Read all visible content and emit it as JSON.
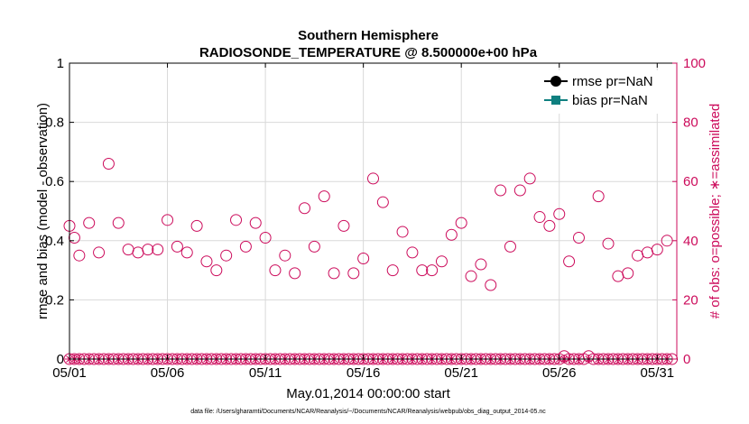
{
  "chart_data": {
    "type": "scatter",
    "title_line1": "Southern Hemisphere",
    "title_line2": "RADIOSONDE_TEMPERATURE @ 8.500000e+00 hPa",
    "xlabel": "May.01,2014 00:00:00 start",
    "ylabel_left": "rmse and bias (model - observation)",
    "ylabel_right": "# of obs: o=possible; ∗=assimilated",
    "footnote": "data file: /Users/gharamti/Documents/NCAR/Reanalysis/~/Documents/NCAR/Reanalysis/webpub/obs_diag_output_2014-05.nc",
    "xlim": [
      1,
      32
    ],
    "x_ticks": [
      1,
      6,
      11,
      16,
      21,
      26,
      31
    ],
    "x_tick_labels": [
      "05/01",
      "05/06",
      "05/11",
      "05/16",
      "05/21",
      "05/26",
      "05/31"
    ],
    "ylim_left": [
      0,
      1
    ],
    "left_ticks": [
      "0",
      "0.2",
      "0.4",
      "0.6",
      "0.8",
      "1"
    ],
    "ylim_right": [
      0,
      100
    ],
    "right_ticks": [
      "0",
      "20",
      "40",
      "60",
      "80",
      "100"
    ],
    "grid": true,
    "legend_position": "top-right",
    "legend": [
      {
        "label": "rmse pr=NaN",
        "color": "#000000",
        "marker": "circle"
      },
      {
        "label": "bias pr=NaN",
        "color": "#0f8080",
        "marker": "square"
      }
    ],
    "colors": {
      "left_axis": "#000000",
      "right_axis": "#cc0b5b",
      "obs": "#cc0b5b",
      "grid": "#d9d9d9"
    },
    "series": [
      {
        "name": "# of obs: possible",
        "axis": "right",
        "marker": "circle",
        "x": [
          1.0,
          1.25,
          1.5,
          2.0,
          2.5,
          3.0,
          3.5,
          4.0,
          4.5,
          5.0,
          5.5,
          6.0,
          6.5,
          7.0,
          7.5,
          8.0,
          8.5,
          9.0,
          9.5,
          10.0,
          10.5,
          11.0,
          11.5,
          12.0,
          12.5,
          13.0,
          13.5,
          14.0,
          14.5,
          15.0,
          15.5,
          16.0,
          16.5,
          17.0,
          17.5,
          18.0,
          18.5,
          19.0,
          19.5,
          20.0,
          20.5,
          21.0,
          21.5,
          22.0,
          22.5,
          23.0,
          23.5,
          24.0,
          24.5,
          25.0,
          25.5,
          26.0,
          26.25,
          26.5,
          27.0,
          27.5,
          28.0,
          28.5,
          29.0,
          29.5,
          30.0,
          30.5,
          31.0,
          31.5
        ],
        "values": [
          45,
          41,
          35,
          46,
          36,
          66,
          46,
          37,
          36,
          37,
          37,
          47,
          38,
          36,
          45,
          33,
          30,
          35,
          47,
          38,
          46,
          41,
          30,
          35,
          29,
          51,
          38,
          55,
          29,
          45,
          29,
          34,
          61,
          53,
          30,
          43,
          36,
          30,
          30,
          33,
          42,
          46,
          28,
          32,
          25,
          57,
          38,
          57,
          61,
          48,
          45,
          49,
          1,
          33,
          41,
          1,
          55,
          39,
          28,
          29,
          35,
          36,
          37,
          40
        ]
      },
      {
        "name": "# of obs: assimilated",
        "axis": "right",
        "marker": "star",
        "x": [
          1.0,
          1.25,
          1.5,
          2.0,
          2.5,
          3.0,
          3.5,
          4.0,
          4.5,
          5.0,
          5.5,
          6.0,
          6.5,
          7.0,
          7.5,
          8.0,
          8.5,
          9.0,
          9.5,
          10.0,
          10.5,
          11.0,
          11.5,
          12.0,
          12.5,
          13.0,
          13.5,
          14.0,
          14.5,
          15.0,
          15.5,
          16.0,
          16.5,
          17.0,
          17.5,
          18.0,
          18.5,
          19.0,
          19.5,
          20.0,
          20.5,
          21.0,
          21.5,
          22.0,
          22.5,
          23.0,
          23.5,
          24.0,
          24.5,
          25.0,
          25.5,
          26.0,
          26.25,
          26.5,
          27.0,
          27.5,
          28.0,
          28.5,
          29.0,
          29.5,
          30.0,
          30.5,
          31.0,
          31.5
        ],
        "values": [
          0,
          0,
          0,
          0,
          0,
          0,
          0,
          0,
          0,
          0,
          0,
          0,
          0,
          0,
          0,
          0,
          0,
          0,
          0,
          0,
          0,
          0,
          0,
          0,
          0,
          0,
          0,
          0,
          0,
          0,
          0,
          0,
          0,
          0,
          0,
          0,
          0,
          0,
          0,
          0,
          0,
          0,
          0,
          0,
          0,
          0,
          0,
          0,
          0,
          0,
          0,
          0,
          0,
          0,
          0,
          0,
          0,
          0,
          0,
          0,
          0,
          0,
          0,
          0
        ]
      },
      {
        "name": "# of obs: possible (zero counts)",
        "axis": "right",
        "marker": "circle",
        "x": [
          1.0,
          1.25,
          1.5,
          1.75,
          2.0,
          2.25,
          2.5,
          2.75,
          3.0,
          3.25,
          3.5,
          3.75,
          4.0,
          4.25,
          4.5,
          4.75,
          5.0,
          5.25,
          5.5,
          5.75,
          6.0,
          6.25,
          6.5,
          6.75,
          7.0,
          7.25,
          7.5,
          7.75,
          8.0,
          8.25,
          8.5,
          8.75,
          9.0,
          9.25,
          9.5,
          9.75,
          10.0,
          10.25,
          10.5,
          10.75,
          11.0,
          11.25,
          11.5,
          11.75,
          12.0,
          12.25,
          12.5,
          12.75,
          13.0,
          13.25,
          13.5,
          13.75,
          14.0,
          14.25,
          14.5,
          14.75,
          15.0,
          15.25,
          15.5,
          15.75,
          16.0,
          16.25,
          16.5,
          16.75,
          17.0,
          17.25,
          17.5,
          17.75,
          18.0,
          18.25,
          18.5,
          18.75,
          19.0,
          19.25,
          19.5,
          19.75,
          20.0,
          20.25,
          20.5,
          20.75,
          21.0,
          21.25,
          21.5,
          21.75,
          22.0,
          22.25,
          22.5,
          22.75,
          23.0,
          23.25,
          23.5,
          23.75,
          24.0,
          24.25,
          24.5,
          24.75,
          25.0,
          25.25,
          25.5,
          25.75,
          26.0,
          26.5,
          26.75,
          27.0,
          27.25,
          27.75,
          28.0,
          28.25,
          28.5,
          28.75,
          29.0,
          29.25,
          29.5,
          29.75,
          30.0,
          30.25,
          30.5,
          30.75,
          31.0,
          31.25,
          31.5,
          31.75
        ],
        "values": [
          0,
          0,
          0,
          0,
          0,
          0,
          0,
          0,
          0,
          0,
          0,
          0,
          0,
          0,
          0,
          0,
          0,
          0,
          0,
          0,
          0,
          0,
          0,
          0,
          0,
          0,
          0,
          0,
          0,
          0,
          0,
          0,
          0,
          0,
          0,
          0,
          0,
          0,
          0,
          0,
          0,
          0,
          0,
          0,
          0,
          0,
          0,
          0,
          0,
          0,
          0,
          0,
          0,
          0,
          0,
          0,
          0,
          0,
          0,
          0,
          0,
          0,
          0,
          0,
          0,
          0,
          0,
          0,
          0,
          0,
          0,
          0,
          0,
          0,
          0,
          0,
          0,
          0,
          0,
          0,
          0,
          0,
          0,
          0,
          0,
          0,
          0,
          0,
          0,
          0,
          0,
          0,
          0,
          0,
          0,
          0,
          0,
          0,
          0,
          0,
          0,
          0,
          0,
          0,
          0,
          0,
          0,
          0,
          0,
          0,
          0,
          0,
          0,
          0,
          0,
          0,
          0,
          0,
          0,
          0,
          0,
          0
        ]
      }
    ]
  }
}
